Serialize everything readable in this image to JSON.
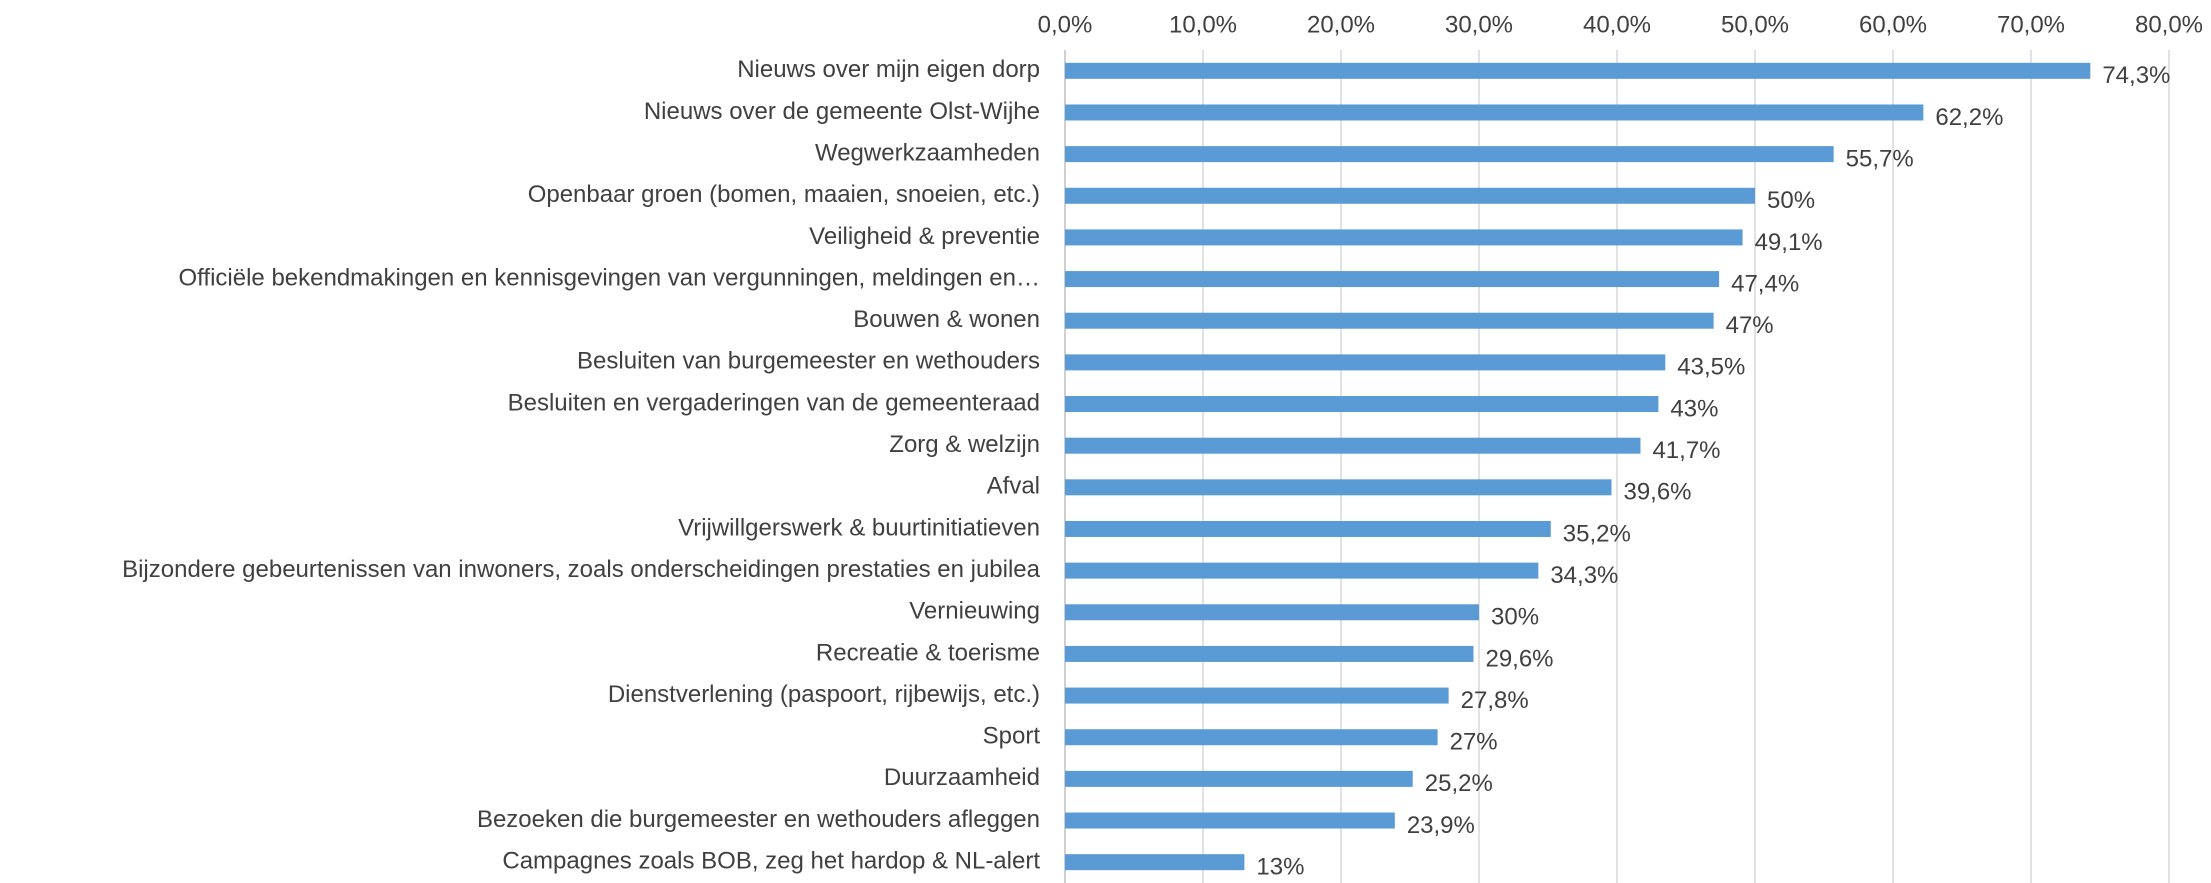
{
  "chart_data": {
    "type": "barh",
    "categories": [
      "Nieuws over mijn eigen dorp",
      "Nieuws over de gemeente Olst-Wijhe",
      "Wegwerkzaamheden",
      "Openbaar groen (bomen, maaien, snoeien, etc.)",
      "Veiligheid & preventie",
      "Officiële bekendmakingen en kennisgevingen van vergunningen, meldingen en…",
      "Bouwen & wonen",
      "Besluiten van burgemeester en wethouders",
      "Besluiten en vergaderingen van de gemeenteraad",
      "Zorg & welzijn",
      "Afval",
      "Vrijwillgerswerk & buurtinitiatieven",
      "Bijzondere gebeurtenissen van inwoners, zoals onderscheidingen prestaties en jubilea",
      "Vernieuwing",
      "Recreatie & toerisme",
      "Dienstverlening (paspoort, rijbewijs, etc.)",
      "Sport",
      "Duurzaamheid",
      "Bezoeken die burgemeester en wethouders afleggen",
      "Campagnes zoals BOB, zeg het hardop & NL-alert"
    ],
    "values": [
      74.3,
      62.2,
      55.7,
      50,
      49.1,
      47.4,
      47,
      43.5,
      43,
      41.7,
      39.6,
      35.2,
      34.3,
      30,
      29.6,
      27.8,
      27,
      25.2,
      23.9,
      13
    ],
    "value_labels": [
      "74,3%",
      "62,2%",
      "55,7%",
      "50%",
      "49,1%",
      "47,4%",
      "47%",
      "43,5%",
      "43%",
      "41,7%",
      "39,6%",
      "35,2%",
      "34,3%",
      "30%",
      "29,6%",
      "27,8%",
      "27%",
      "25,2%",
      "23,9%",
      "13%"
    ],
    "color": "#5b9bd5",
    "xlim": [
      0,
      80
    ],
    "xticks": [
      {
        "value": 0,
        "label": "0,0%"
      },
      {
        "value": 10,
        "label": "10,0%"
      },
      {
        "value": 20,
        "label": "20,0%"
      },
      {
        "value": 30,
        "label": "30,0%"
      },
      {
        "value": 40,
        "label": "40,0%"
      },
      {
        "value": 50,
        "label": "50,0%"
      },
      {
        "value": 60,
        "label": "60,0%"
      },
      {
        "value": 70,
        "label": "70,0%"
      },
      {
        "value": 80,
        "label": "80,0%"
      }
    ],
    "grid": true
  }
}
